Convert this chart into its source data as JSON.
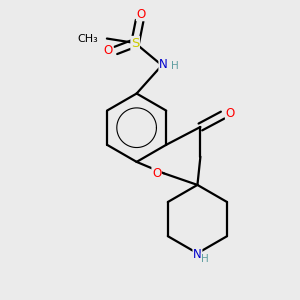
{
  "background_color": "#ebebeb",
  "atom_colors": {
    "C": "#000000",
    "N": "#0000cc",
    "O": "#ff0000",
    "S": "#cccc00",
    "H": "#5f9ea0"
  },
  "figsize": [
    3.0,
    3.0
  ],
  "dpi": 100,
  "lw": 1.6
}
